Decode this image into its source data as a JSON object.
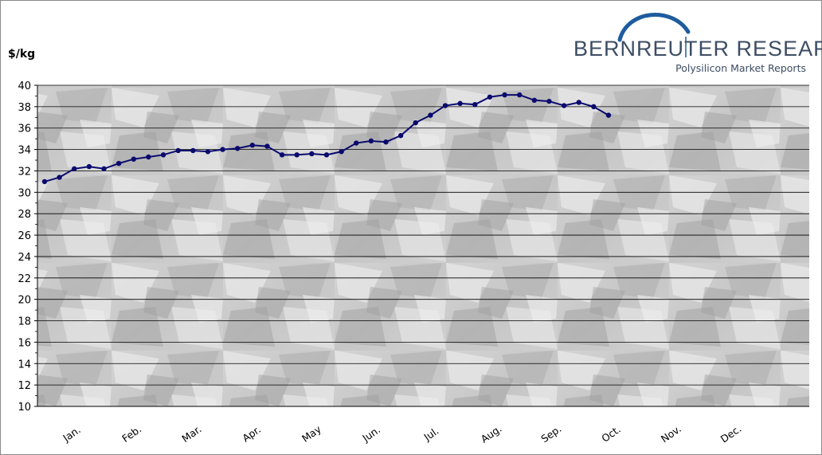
{
  "logo": {
    "brand": "BERNREUTER",
    "brand2": "RESEARCH",
    "subtitle": "Polysilicon Market Reports"
  },
  "chart_data": {
    "type": "line",
    "ylabel": "$/kg",
    "ylim": [
      10,
      40
    ],
    "yticks": [
      10,
      12,
      14,
      16,
      18,
      20,
      22,
      24,
      26,
      28,
      30,
      32,
      34,
      36,
      38,
      40
    ],
    "months": [
      "Jan.",
      "Feb.",
      "Mar.",
      "Apr.",
      "May",
      "Jun.",
      "Jul.",
      "Aug.",
      "Sep.",
      "Oct.",
      "Nov.",
      "Dec."
    ],
    "grid": true,
    "line_color": "#0a0a6e",
    "series": [
      {
        "values": [
          31.0,
          31.4,
          32.2,
          32.4,
          32.2,
          32.7,
          33.1,
          33.3,
          33.5,
          33.9,
          33.9,
          33.8,
          34.0,
          34.1,
          34.4,
          34.3,
          33.5,
          33.5,
          33.6,
          33.5,
          33.8,
          34.6,
          34.8,
          34.7,
          35.3,
          36.5,
          37.2,
          38.1,
          38.3,
          38.2,
          38.9,
          39.1,
          39.1,
          38.6,
          38.5,
          38.1,
          38.4,
          38.0,
          37.2
        ]
      }
    ]
  }
}
